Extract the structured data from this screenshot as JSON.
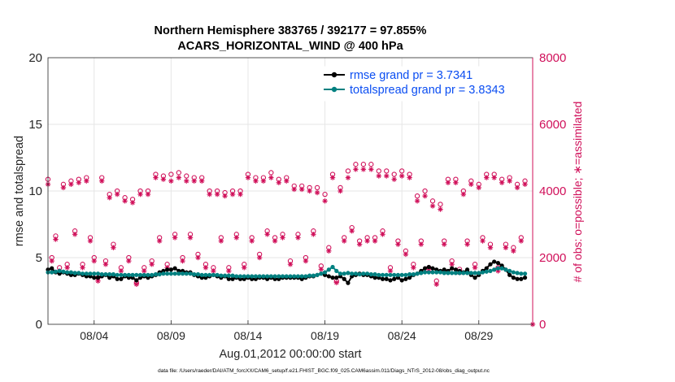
{
  "chart_data": {
    "type": "line",
    "title_line1": "Northern Hemisphere 383765 / 392177 = 97.855%",
    "title_line2": "ACARS_HORIZONTAL_WIND @ 400 hPa",
    "xlabel": "Aug.01,2012 00:00:00 start",
    "ylabel_left": "rmse and totalspread",
    "ylabel_right": "# of obs: o=possible; ∗=assimilated",
    "footer": "data file: /Users/raeder/DAI/ATM_forcXX/CAM6_setup/f.e21.FHIST_BGC.f09_025.CAM6assim.011/Diags_NTrS_2012-08/obs_diag_output.nc",
    "xlim": [
      1,
      32.5
    ],
    "ylim_left": [
      0,
      20
    ],
    "ylim_right": [
      0,
      8000
    ],
    "x_ticks": [
      4,
      9,
      14,
      19,
      24,
      29
    ],
    "x_tick_labels": [
      "08/04",
      "08/09",
      "08/14",
      "08/19",
      "08/24",
      "08/29"
    ],
    "y_left_ticks": [
      "0",
      "5",
      "10",
      "15",
      "20"
    ],
    "y_right_ticks": [
      "0",
      "2000",
      "4000",
      "6000",
      "8000"
    ],
    "grid": true,
    "legend_position": "top-right",
    "series": [
      {
        "name": "rmse grand pr = 3.7341",
        "color": "#000000",
        "axis": "left",
        "x": [
          1.0,
          1.25,
          1.5,
          1.75,
          2.0,
          2.25,
          2.5,
          2.75,
          3.0,
          3.25,
          3.5,
          3.75,
          4.0,
          4.25,
          4.5,
          4.75,
          5.0,
          5.25,
          5.5,
          5.75,
          6.0,
          6.25,
          6.5,
          6.75,
          7.0,
          7.25,
          7.5,
          7.75,
          8.0,
          8.25,
          8.5,
          8.75,
          9.0,
          9.25,
          9.5,
          9.75,
          10.0,
          10.25,
          10.5,
          10.75,
          11.0,
          11.25,
          11.5,
          11.75,
          12.0,
          12.25,
          12.5,
          12.75,
          13.0,
          13.25,
          13.5,
          13.75,
          14.0,
          14.25,
          14.5,
          14.75,
          15.0,
          15.25,
          15.5,
          15.75,
          16.0,
          16.25,
          16.5,
          16.75,
          17.0,
          17.25,
          17.5,
          17.75,
          18.0,
          18.25,
          18.5,
          18.75,
          19.0,
          19.25,
          19.5,
          19.75,
          20.0,
          20.25,
          20.5,
          20.75,
          21.0,
          21.25,
          21.5,
          21.75,
          22.0,
          22.25,
          22.5,
          22.75,
          23.0,
          23.25,
          23.5,
          23.75,
          24.0,
          24.25,
          24.5,
          24.75,
          25.0,
          25.25,
          25.5,
          25.75,
          26.0,
          26.25,
          26.5,
          26.75,
          27.0,
          27.25,
          27.5,
          27.75,
          28.0,
          28.25,
          28.5,
          28.75,
          29.0,
          29.25,
          29.5,
          29.75,
          30.0,
          30.25,
          30.5,
          30.75,
          31.0,
          31.25,
          31.5,
          31.75,
          32.0
        ],
        "values": [
          4.1,
          4.2,
          3.9,
          3.8,
          3.9,
          3.8,
          3.7,
          3.7,
          3.8,
          3.7,
          3.6,
          3.6,
          3.5,
          3.5,
          3.6,
          3.7,
          3.5,
          3.6,
          3.4,
          3.4,
          3.6,
          3.5,
          3.5,
          3.3,
          3.5,
          3.6,
          3.5,
          3.6,
          3.7,
          3.9,
          4.0,
          4.1,
          4.1,
          4.2,
          4.0,
          4.0,
          3.9,
          3.9,
          3.7,
          3.6,
          3.5,
          3.5,
          3.6,
          3.7,
          3.6,
          3.5,
          3.6,
          3.4,
          3.4,
          3.5,
          3.4,
          3.4,
          3.5,
          3.4,
          3.4,
          3.5,
          3.5,
          3.4,
          3.5,
          3.4,
          3.4,
          3.5,
          3.5,
          3.5,
          3.5,
          3.5,
          3.4,
          3.5,
          3.6,
          3.6,
          3.7,
          3.8,
          3.7,
          3.6,
          3.5,
          3.5,
          3.6,
          3.4,
          3.1,
          3.6,
          3.7,
          3.8,
          3.7,
          3.7,
          3.6,
          3.5,
          3.5,
          3.4,
          3.4,
          3.3,
          3.4,
          3.5,
          3.3,
          3.4,
          3.5,
          3.7,
          3.8,
          4.0,
          4.2,
          4.3,
          4.2,
          4.1,
          4.0,
          4.1,
          4.0,
          4.2,
          4.1,
          4.0,
          3.9,
          4.1,
          3.7,
          3.5,
          3.7,
          4.0,
          4.2,
          4.5,
          4.7,
          4.6,
          4.4,
          4.1,
          3.7,
          3.5,
          3.4,
          3.4,
          3.5
        ]
      },
      {
        "name": "totalspread grand pr = 3.8343",
        "color": "#008080",
        "axis": "left",
        "x": [
          1.0,
          1.25,
          1.5,
          1.75,
          2.0,
          2.25,
          2.5,
          2.75,
          3.0,
          3.25,
          3.5,
          3.75,
          4.0,
          4.25,
          4.5,
          4.75,
          5.0,
          5.25,
          5.5,
          5.75,
          6.0,
          6.25,
          6.5,
          6.75,
          7.0,
          7.25,
          7.5,
          7.75,
          8.0,
          8.25,
          8.5,
          8.75,
          9.0,
          9.25,
          9.5,
          9.75,
          10.0,
          10.25,
          10.5,
          10.75,
          11.0,
          11.25,
          11.5,
          11.75,
          12.0,
          12.25,
          12.5,
          12.75,
          13.0,
          13.25,
          13.5,
          13.75,
          14.0,
          14.25,
          14.5,
          14.75,
          15.0,
          15.25,
          15.5,
          15.75,
          16.0,
          16.25,
          16.5,
          16.75,
          17.0,
          17.25,
          17.5,
          17.75,
          18.0,
          18.25,
          18.5,
          18.75,
          19.0,
          19.25,
          19.5,
          19.75,
          20.0,
          20.25,
          20.5,
          20.75,
          21.0,
          21.25,
          21.5,
          21.75,
          22.0,
          22.25,
          22.5,
          22.75,
          23.0,
          23.25,
          23.5,
          23.75,
          24.0,
          24.25,
          24.5,
          24.75,
          25.0,
          25.25,
          25.5,
          25.75,
          26.0,
          26.25,
          26.5,
          26.75,
          27.0,
          27.25,
          27.5,
          27.75,
          28.0,
          28.25,
          28.5,
          28.75,
          29.0,
          29.25,
          29.5,
          29.75,
          30.0,
          30.25,
          30.5,
          30.75,
          31.0,
          31.25,
          31.5,
          31.75,
          32.0
        ],
        "values": [
          3.9,
          3.9,
          3.95,
          4.0,
          3.95,
          3.9,
          3.9,
          3.85,
          3.85,
          3.8,
          3.8,
          3.8,
          3.8,
          3.8,
          3.75,
          3.75,
          3.75,
          3.75,
          3.7,
          3.7,
          3.7,
          3.7,
          3.7,
          3.7,
          3.7,
          3.7,
          3.7,
          3.7,
          3.75,
          3.75,
          3.8,
          3.8,
          3.8,
          3.8,
          3.8,
          3.8,
          3.8,
          3.8,
          3.75,
          3.75,
          3.7,
          3.7,
          3.7,
          3.7,
          3.7,
          3.65,
          3.65,
          3.65,
          3.65,
          3.6,
          3.6,
          3.6,
          3.6,
          3.6,
          3.6,
          3.6,
          3.6,
          3.6,
          3.6,
          3.6,
          3.6,
          3.6,
          3.6,
          3.6,
          3.6,
          3.6,
          3.6,
          3.6,
          3.65,
          3.65,
          3.7,
          3.8,
          3.9,
          4.1,
          4.3,
          4.0,
          3.8,
          3.8,
          3.85,
          3.8,
          3.8,
          3.75,
          3.8,
          3.8,
          3.75,
          3.75,
          3.7,
          3.7,
          3.7,
          3.7,
          3.7,
          3.7,
          3.7,
          3.7,
          3.75,
          3.75,
          3.8,
          3.85,
          3.9,
          3.9,
          3.9,
          3.9,
          3.9,
          3.85,
          3.85,
          3.85,
          3.85,
          3.85,
          3.85,
          3.85,
          3.85,
          3.85,
          3.85,
          3.9,
          3.95,
          4.0,
          4.1,
          4.2,
          4.2,
          4.1,
          4.0,
          3.9,
          3.85,
          3.8,
          3.8
        ]
      },
      {
        "name": "# of obs possible",
        "color": "#d0105a",
        "axis": "right",
        "marker": "o",
        "x": [
          1.0,
          1.25,
          1.5,
          1.75,
          2.0,
          2.25,
          2.5,
          2.75,
          3.0,
          3.25,
          3.5,
          3.75,
          4.0,
          4.25,
          4.5,
          4.75,
          5.0,
          5.25,
          5.5,
          5.75,
          6.0,
          6.25,
          6.5,
          6.75,
          7.0,
          7.25,
          7.5,
          7.75,
          8.0,
          8.25,
          8.5,
          8.75,
          9.0,
          9.25,
          9.5,
          9.75,
          10.0,
          10.25,
          10.5,
          10.75,
          11.0,
          11.25,
          11.5,
          11.75,
          12.0,
          12.25,
          12.5,
          12.75,
          13.0,
          13.25,
          13.5,
          13.75,
          14.0,
          14.25,
          14.5,
          14.75,
          15.0,
          15.25,
          15.5,
          15.75,
          16.0,
          16.25,
          16.5,
          16.75,
          17.0,
          17.25,
          17.5,
          17.75,
          18.0,
          18.25,
          18.5,
          18.75,
          19.0,
          19.25,
          19.5,
          19.75,
          20.0,
          20.25,
          20.5,
          20.75,
          21.0,
          21.25,
          21.5,
          21.75,
          22.0,
          22.25,
          22.5,
          22.75,
          23.0,
          23.25,
          23.5,
          23.75,
          24.0,
          24.25,
          24.5,
          24.75,
          25.0,
          25.25,
          25.5,
          25.75,
          26.0,
          26.25,
          26.5,
          26.75,
          27.0,
          27.25,
          27.5,
          27.75,
          28.0,
          28.25,
          28.5,
          28.75,
          29.0,
          29.25,
          29.5,
          29.75,
          30.0,
          30.25,
          30.5,
          30.75,
          31.0,
          31.25,
          31.5,
          31.75,
          32.0
        ],
        "values": [
          4350,
          2000,
          2650,
          1700,
          4200,
          1800,
          4300,
          2800,
          4350,
          1800,
          4400,
          2600,
          2000,
          1400,
          4400,
          1900,
          3900,
          2400,
          4000,
          1700,
          3800,
          2000,
          3750,
          1250,
          4000,
          1700,
          4000,
          1900,
          4500,
          2600,
          4450,
          1800,
          4500,
          2700,
          4550,
          2000,
          4450,
          2700,
          4400,
          2100,
          4400,
          1800,
          4000,
          1700,
          4000,
          2600,
          3950,
          1700,
          4000,
          2700,
          4000,
          1800,
          4500,
          2600,
          4400,
          2100,
          4400,
          2800,
          4550,
          2600,
          4350,
          2700,
          4400,
          1900,
          4150,
          2700,
          4150,
          2000,
          4100,
          2800,
          4100,
          1750,
          3900,
          2300,
          4500,
          1300,
          4100,
          2600,
          4600,
          2900,
          4800,
          2500,
          4800,
          2600,
          4800,
          2600,
          4600,
          2800,
          4600,
          1700,
          4500,
          2500,
          4600,
          2200,
          4500,
          1800,
          3850,
          2500,
          4000,
          1700,
          3700,
          1300,
          3600,
          2500,
          4350,
          1900,
          4350,
          1650,
          4000,
          2500,
          4300,
          1800,
          4200,
          2600,
          4500,
          2400,
          4500,
          1700,
          4350,
          2400,
          4400,
          2300,
          4200,
          2600,
          4300
        ]
      },
      {
        "name": "# of obs assimilated",
        "color": "#d0105a",
        "axis": "right",
        "marker": "*",
        "x": [
          1.0,
          1.25,
          1.5,
          1.75,
          2.0,
          2.25,
          2.5,
          2.75,
          3.0,
          3.25,
          3.5,
          3.75,
          4.0,
          4.25,
          4.5,
          4.75,
          5.0,
          5.25,
          5.5,
          5.75,
          6.0,
          6.25,
          6.5,
          6.75,
          7.0,
          7.25,
          7.5,
          7.75,
          8.0,
          8.25,
          8.5,
          8.75,
          9.0,
          9.25,
          9.5,
          9.75,
          10.0,
          10.25,
          10.5,
          10.75,
          11.0,
          11.25,
          11.5,
          11.75,
          12.0,
          12.25,
          12.5,
          12.75,
          13.0,
          13.25,
          13.5,
          13.75,
          14.0,
          14.25,
          14.5,
          14.75,
          15.0,
          15.25,
          15.5,
          15.75,
          16.0,
          16.25,
          16.5,
          16.75,
          17.0,
          17.25,
          17.5,
          17.75,
          18.0,
          18.25,
          18.5,
          18.75,
          19.0,
          19.25,
          19.5,
          19.75,
          20.0,
          20.25,
          20.5,
          20.75,
          21.0,
          21.25,
          21.5,
          21.75,
          22.0,
          22.25,
          22.5,
          22.75,
          23.0,
          23.25,
          23.5,
          23.75,
          24.0,
          24.25,
          24.5,
          24.75,
          25.0,
          25.25,
          25.5,
          25.75,
          26.0,
          26.25,
          26.5,
          26.75,
          27.0,
          27.25,
          27.5,
          27.75,
          28.0,
          28.25,
          28.5,
          28.75,
          29.0,
          29.25,
          29.5,
          29.75,
          30.0,
          30.25,
          30.5,
          30.75,
          31.0,
          31.25,
          31.5,
          31.75,
          32.0,
          32.5
        ],
        "values": [
          4200,
          1900,
          2550,
          1600,
          4100,
          1700,
          4200,
          2700,
          4250,
          1700,
          4300,
          2500,
          1900,
          1300,
          4300,
          1800,
          3800,
          2300,
          3900,
          1600,
          3700,
          1900,
          3650,
          1200,
          3900,
          1600,
          3900,
          1800,
          4400,
          2500,
          4350,
          1700,
          4300,
          2600,
          4400,
          1900,
          4300,
          2600,
          4300,
          2000,
          4300,
          1700,
          3900,
          1600,
          3900,
          2500,
          3850,
          1600,
          3900,
          2600,
          3900,
          1700,
          4400,
          2500,
          4300,
          2000,
          4300,
          2700,
          4400,
          2500,
          4250,
          2600,
          4300,
          1800,
          4050,
          2600,
          4050,
          1900,
          4000,
          2700,
          3950,
          1650,
          3700,
          2200,
          4400,
          1250,
          4000,
          2500,
          4400,
          2800,
          4650,
          2400,
          4650,
          2500,
          4650,
          2500,
          4450,
          2700,
          4450,
          1600,
          4350,
          2400,
          4450,
          2100,
          4400,
          1700,
          3700,
          2400,
          3850,
          1600,
          3550,
          1200,
          3450,
          2400,
          4250,
          1800,
          4250,
          1550,
          3900,
          2400,
          4200,
          1700,
          4100,
          2500,
          4400,
          2300,
          4400,
          1600,
          4250,
          2300,
          4300,
          2200,
          4100,
          2500,
          4200,
          0
        ]
      }
    ]
  },
  "colors": {
    "rmse": "#000000",
    "spread": "#008080",
    "obs": "#d0105a",
    "legend_text": "#0b4ef2",
    "grid": "#e6e6e6"
  }
}
